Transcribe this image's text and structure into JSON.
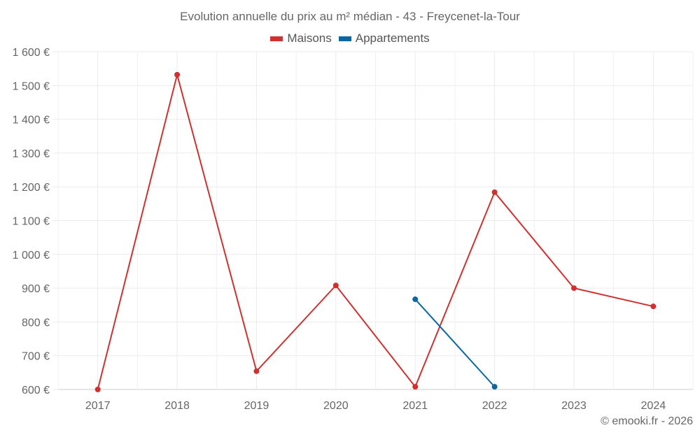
{
  "chart_data": {
    "type": "line",
    "title": "Evolution annuelle du prix au m² médian - 43 - Freycenet-la-Tour",
    "xlabel": "",
    "ylabel": "",
    "x": [
      "2017",
      "2018",
      "2019",
      "2020",
      "2021",
      "2022",
      "2023",
      "2024"
    ],
    "series": [
      {
        "name": "Maisons",
        "color": "#d32f2f",
        "values": [
          600,
          1532,
          654,
          908,
          608,
          1184,
          900,
          846
        ]
      },
      {
        "name": "Appartements",
        "color": "#0a67a3",
        "values": [
          null,
          null,
          null,
          null,
          867,
          608,
          null,
          null
        ]
      }
    ],
    "ylim": [
      600,
      1600
    ],
    "yticks": [
      600,
      700,
      800,
      900,
      1000,
      1100,
      1200,
      1300,
      1400,
      1500,
      1600
    ],
    "ytick_labels": [
      "600 €",
      "700 €",
      "800 €",
      "900 €",
      "1 000 €",
      "1 100 €",
      "1 200 €",
      "1 300 €",
      "1 400 €",
      "1 500 €",
      "1 600 €"
    ],
    "grid": true,
    "legend_position": "top"
  },
  "legend": {
    "items": [
      {
        "label": "Maisons",
        "color": "#d32f2f"
      },
      {
        "label": "Appartements",
        "color": "#0a67a3"
      }
    ]
  },
  "credit": "© emooki.fr - 2026"
}
